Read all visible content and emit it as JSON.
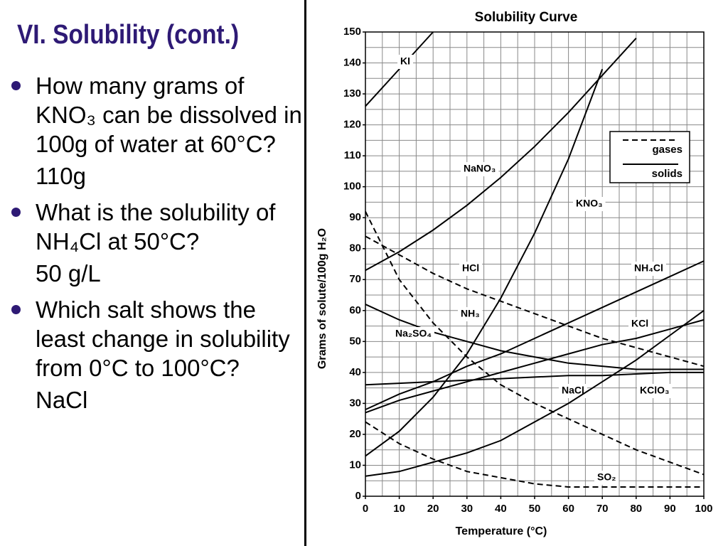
{
  "title": "VI. Solubility (cont.)",
  "items": [
    {
      "question": "How many grams of KNO₃ can be dissolved in 100g of water at 60°C?",
      "answer": "110g"
    },
    {
      "question": "What is the solubility of NH₄Cl at 50°C?",
      "answer": "50 g/L"
    },
    {
      "question": "Which salt shows the least change in solubility from 0°C to 100°C?",
      "answer": "NaCl"
    }
  ],
  "chart_data": {
    "type": "line",
    "title": "Solubility Curve",
    "x_label": "Temperature (°C)",
    "y_label": "Grams of solute/100g H₂O",
    "x": [
      0,
      10,
      20,
      30,
      40,
      50,
      60,
      70,
      80,
      90,
      100
    ],
    "xlim": [
      0,
      100
    ],
    "xticks": [
      0,
      10,
      20,
      30,
      40,
      50,
      60,
      70,
      80,
      90,
      100
    ],
    "ylim": [
      0,
      150
    ],
    "yticks": [
      0,
      10,
      20,
      30,
      40,
      50,
      60,
      70,
      80,
      90,
      100,
      110,
      120,
      130,
      140,
      150
    ],
    "grid": true,
    "grid_step": 5,
    "legend": [
      {
        "label": "gases",
        "dashed": true
      },
      {
        "label": "solids",
        "dashed": false
      }
    ],
    "legend_position": "upper right",
    "series": [
      {
        "name": "KI",
        "color": "#000000",
        "dashed": false,
        "values": [
          126,
          138,
          150,
          null,
          null,
          null,
          null,
          null,
          null,
          null,
          null
        ]
      },
      {
        "name": "NaNO₃",
        "color": "#000000",
        "dashed": false,
        "values": [
          73,
          79,
          86,
          94,
          103,
          113,
          124,
          136,
          148,
          null,
          null
        ]
      },
      {
        "name": "KNO₃",
        "color": "#000000",
        "dashed": false,
        "values": [
          13,
          21,
          32,
          46,
          64,
          85,
          109,
          138,
          null,
          null,
          null
        ]
      },
      {
        "name": "NH₄Cl",
        "color": "#000000",
        "dashed": false,
        "values": [
          28,
          33,
          37,
          42,
          46,
          51,
          56,
          61,
          66,
          71,
          76
        ]
      },
      {
        "name": "HCl",
        "color": "#000000",
        "dashed": true,
        "values": [
          84,
          78,
          72,
          67,
          63,
          59,
          55,
          51,
          48,
          45,
          42
        ]
      },
      {
        "name": "KCl",
        "color": "#000000",
        "dashed": false,
        "values": [
          27,
          31,
          34,
          37,
          40,
          43,
          46,
          49,
          51,
          54,
          57
        ]
      },
      {
        "name": "NH₃",
        "color": "#000000",
        "dashed": true,
        "values": [
          92,
          70,
          56,
          45,
          36,
          30,
          25,
          20,
          15,
          11,
          7
        ]
      },
      {
        "name": "Na₂SO₄",
        "color": "#000000",
        "dashed": false,
        "values": [
          62,
          57,
          53,
          50,
          47,
          45,
          43,
          42,
          41,
          41,
          41
        ]
      },
      {
        "name": "NaCl",
        "color": "#000000",
        "dashed": false,
        "values": [
          36,
          36.5,
          37,
          37.5,
          38,
          38.5,
          39,
          39,
          39.5,
          40,
          40
        ]
      },
      {
        "name": "KClO₃",
        "color": "#000000",
        "dashed": false,
        "values": [
          6.5,
          8,
          11,
          14,
          18,
          24,
          30,
          37,
          44,
          52,
          60
        ]
      },
      {
        "name": "SO₂",
        "color": "#000000",
        "dashed": true,
        "values": [
          24,
          17,
          12,
          8,
          6,
          4,
          3,
          3,
          3,
          3,
          3
        ]
      }
    ]
  }
}
